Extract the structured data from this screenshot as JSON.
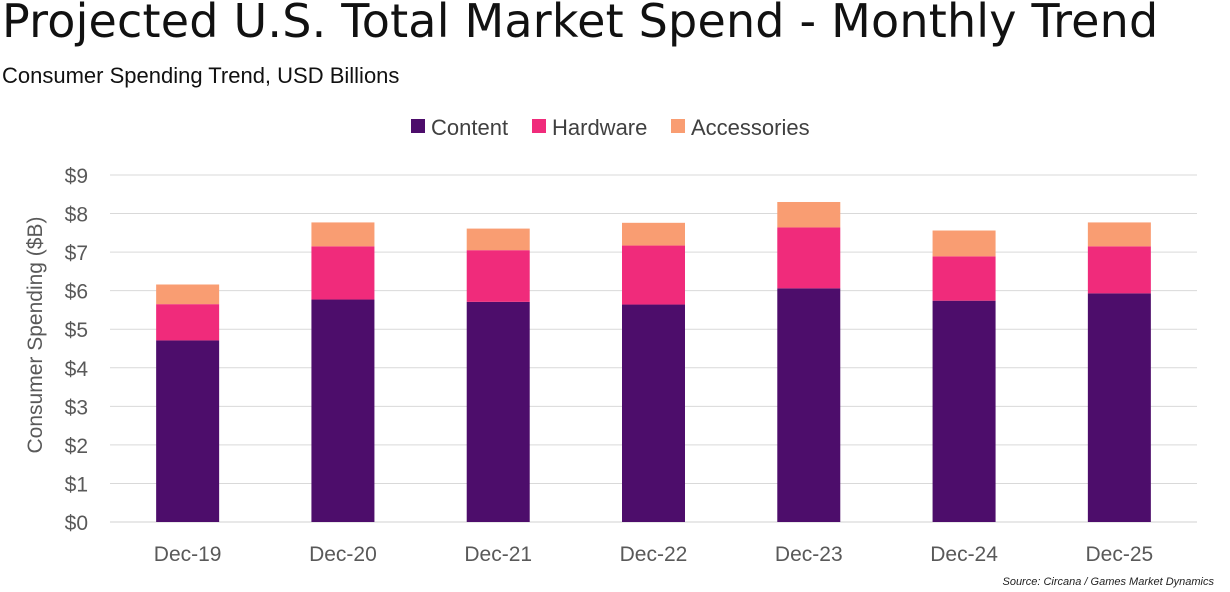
{
  "chart_data": {
    "type": "bar",
    "stacked": true,
    "title": "Projected U.S. Total Market Spend - Monthly Trend",
    "subtitle": "Consumer Spending Trend, USD Billions",
    "ylabel": "Consumer Spending ($B)",
    "xlabel": "",
    "ylim": [
      0,
      9
    ],
    "yticks": [
      "$0",
      "$1",
      "$2",
      "$3",
      "$4",
      "$5",
      "$6",
      "$7",
      "$8",
      "$9"
    ],
    "grid": true,
    "legend_position": "top-center",
    "categories": [
      "Dec-19",
      "Dec-20",
      "Dec-21",
      "Dec-22",
      "Dec-23",
      "Dec-24",
      "Dec-25"
    ],
    "series": [
      {
        "name": "Content",
        "color": "#4d0d6b",
        "values": [
          4.71,
          5.77,
          5.71,
          5.64,
          6.06,
          5.74,
          5.93
        ]
      },
      {
        "name": "Hardware",
        "color": "#f02b7b",
        "values": [
          0.94,
          1.38,
          1.34,
          1.53,
          1.58,
          1.15,
          1.22
        ]
      },
      {
        "name": "Accessories",
        "color": "#f99d72",
        "values": [
          0.51,
          0.62,
          0.56,
          0.59,
          0.66,
          0.67,
          0.62
        ]
      }
    ],
    "source": "Source: Circana / Games Market Dynamics"
  }
}
